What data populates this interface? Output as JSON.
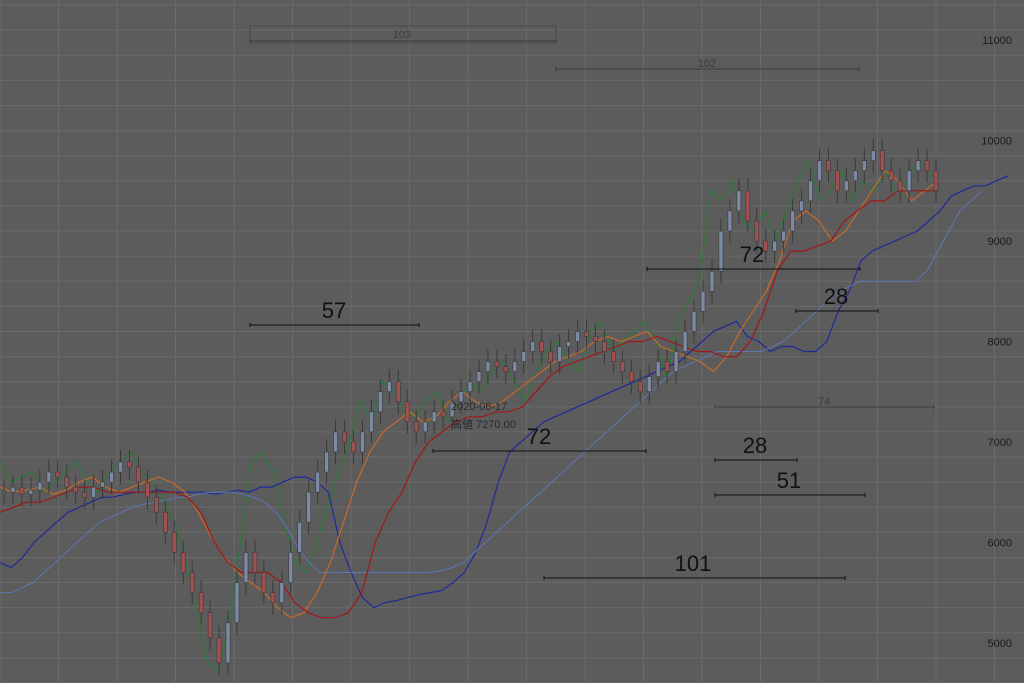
{
  "chart_data": {
    "type": "line",
    "description_source": "Ichimoku-style candlestick chart with count markers",
    "y_axis": {
      "ticks": [
        "11000",
        "10000",
        "9000",
        "8000",
        "7000",
        "6000",
        "5000"
      ],
      "tick_values": [
        11000,
        10000,
        9000,
        8000,
        7000,
        6000,
        5000
      ],
      "range": [
        4600,
        11400
      ],
      "gridlines": true
    },
    "annotation": {
      "date": "2020-06-17",
      "price_label": "高値 7270.00"
    },
    "count_markers": [
      {
        "label": "103",
        "size": "small"
      },
      {
        "label": "102",
        "size": "small"
      },
      {
        "label": "72",
        "size": "large"
      },
      {
        "label": "28",
        "size": "large"
      },
      {
        "label": "57",
        "size": "large"
      },
      {
        "label": "74",
        "size": "small"
      },
      {
        "label": "72",
        "size": "large"
      },
      {
        "label": "28",
        "size": "large"
      },
      {
        "label": "51",
        "size": "large"
      },
      {
        "label": "101",
        "size": "large"
      }
    ],
    "series": [
      {
        "key": "chikou",
        "color": "#2a7a3a",
        "values": [
          6800,
          6600,
          6650,
          6700,
          6500,
          6600,
          6700,
          6800,
          6600,
          6500,
          6700,
          6800,
          6900,
          6700,
          6600,
          6400,
          6200,
          5800,
          5300,
          4800,
          4720,
          5200,
          6000,
          6800,
          6900,
          6700,
          6200,
          5800,
          5700,
          6000,
          6400,
          6700,
          7000,
          7400,
          7200,
          7600,
          7500,
          7300,
          7250,
          7400,
          7500,
          7200,
          7400,
          7600,
          7500,
          7700,
          7800,
          7600,
          7400,
          7700,
          7900,
          8000,
          7800,
          7700,
          8100,
          8200,
          7900,
          8000,
          8100,
          8200,
          8000,
          7600,
          8200,
          8400,
          8600,
          9500,
          9400,
          9600,
          9200,
          9100,
          9300,
          9000,
          9300,
          9600,
          9800,
          9400,
          9500,
          9700,
          9400,
          9600,
          9500,
          9700,
          9500,
          9600,
          9800,
          9700,
          9500
        ]
      },
      {
        "key": "kumo_upper",
        "color": "#1f2a9a",
        "values": [
          5800,
          5750,
          5850,
          6000,
          6100,
          6200,
          6300,
          6350,
          6400,
          6450,
          6450,
          6480,
          6500,
          6500,
          6520,
          6500,
          6500,
          6500,
          6500,
          6480,
          6500,
          6520,
          6500,
          6550,
          6550,
          6600,
          6650,
          6650,
          6600,
          6500,
          6000,
          5700,
          5450,
          5350,
          5400,
          5420,
          5450,
          5480,
          5500,
          5520,
          5600,
          5700,
          5900,
          6200,
          6600,
          6900,
          7000,
          7100,
          7200,
          7250,
          7300,
          7350,
          7400,
          7450,
          7500,
          7550,
          7600,
          7650,
          7700,
          7750,
          7800,
          7900,
          8000,
          8100,
          8150,
          8200,
          8050,
          8000,
          7900,
          7950,
          7950,
          7900,
          7900,
          8000,
          8300,
          8500,
          8800,
          8900,
          8950,
          9000,
          9050,
          9100,
          9200,
          9300,
          9450,
          9500,
          9550,
          9550,
          9600,
          9650
        ]
      },
      {
        "key": "kumo_lower",
        "color": "#5a78b5",
        "values": [
          5500,
          5500,
          5550,
          5600,
          5700,
          5800,
          5900,
          6000,
          6100,
          6200,
          6250,
          6300,
          6350,
          6380,
          6400,
          6420,
          6450,
          6450,
          6480,
          6500,
          6500,
          6500,
          6480,
          6450,
          6400,
          6300,
          6150,
          5950,
          5800,
          5700,
          5700,
          5700,
          5700,
          5700,
          5700,
          5700,
          5700,
          5700,
          5700,
          5700,
          5720,
          5750,
          5800,
          5900,
          6000,
          6100,
          6200,
          6300,
          6400,
          6500,
          6600,
          6700,
          6800,
          6900,
          7000,
          7100,
          7200,
          7300,
          7400,
          7500,
          7600,
          7700,
          7750,
          7800,
          7850,
          7900,
          7900,
          7900,
          7900,
          7900,
          7950,
          8000,
          8100,
          8200,
          8300,
          8400,
          8500,
          8550,
          8600,
          8600,
          8600,
          8600,
          8600,
          8600,
          8700,
          8900,
          9100,
          9300,
          9400,
          9500
        ]
      },
      {
        "key": "tenkan",
        "color": "#c86a2a",
        "values": [
          6550,
          6500,
          6520,
          6550,
          6480,
          6520,
          6600,
          6650,
          6550,
          6500,
          6550,
          6600,
          6650,
          6600,
          6500,
          6300,
          6050,
          5850,
          5700,
          5600,
          5500,
          5350,
          5250,
          5300,
          5500,
          5800,
          6200,
          6600,
          6900,
          7100,
          7200,
          7300,
          7200,
          7250,
          7400,
          7500,
          7400,
          7350,
          7400,
          7500,
          7600,
          7700,
          7800,
          7850,
          7900,
          8000,
          8050,
          8000,
          8050,
          8100,
          7950,
          7900,
          7850,
          7800,
          7700,
          7850,
          8100,
          8300,
          8500,
          8800,
          9200,
          9300,
          9200,
          9000,
          9100,
          9300,
          9500,
          9700,
          9600,
          9400,
          9500,
          9600
        ]
      },
      {
        "key": "kijun",
        "color": "#a01818",
        "values": [
          6300,
          6350,
          6400,
          6400,
          6450,
          6500,
          6550,
          6550,
          6500,
          6500,
          6500,
          6500,
          6500,
          6500,
          6450,
          6300,
          6000,
          5800,
          5700,
          5700,
          5700,
          5600,
          5400,
          5300,
          5250,
          5250,
          5300,
          5500,
          6000,
          6300,
          6500,
          6800,
          7000,
          7100,
          7200,
          7250,
          7250,
          7300,
          7300,
          7350,
          7500,
          7650,
          7750,
          7800,
          7850,
          7900,
          7950,
          8000,
          8000,
          8050,
          8000,
          7950,
          7900,
          7900,
          7850,
          7850,
          8000,
          8300,
          8700,
          8900,
          8900,
          8950,
          9000,
          9200,
          9300,
          9400,
          9400,
          9500,
          9500,
          9500,
          9500
        ]
      }
    ],
    "candles": [
      6500,
      6550,
      6480,
      6520,
      6600,
      6700,
      6650,
      6550,
      6500,
      6450,
      6550,
      6600,
      6700,
      6800,
      6750,
      6600,
      6450,
      6300,
      6100,
      5900,
      5700,
      5500,
      5300,
      5050,
      4800,
      5200,
      5600,
      5900,
      5700,
      5500,
      5400,
      5600,
      5900,
      6200,
      6500,
      6700,
      6900,
      7100,
      7000,
      6900,
      7100,
      7300,
      7500,
      7600,
      7400,
      7200,
      7100,
      7200,
      7300,
      7250,
      7400,
      7500,
      7600,
      7700,
      7800,
      7750,
      7700,
      7800,
      7900,
      8000,
      7900,
      7800,
      7950,
      8000,
      8100,
      8050,
      8000,
      7900,
      7800,
      7700,
      7600,
      7500,
      7650,
      7800,
      7700,
      7900,
      8100,
      8300,
      8500,
      8700,
      9100,
      9300,
      9500,
      9200,
      9000,
      8900,
      9000,
      9100,
      9300,
      9400,
      9600,
      9800,
      9700,
      9500,
      9600,
      9700,
      9800,
      9900,
      9700,
      9600,
      9500,
      9700,
      9800,
      9700,
      9500
    ]
  }
}
